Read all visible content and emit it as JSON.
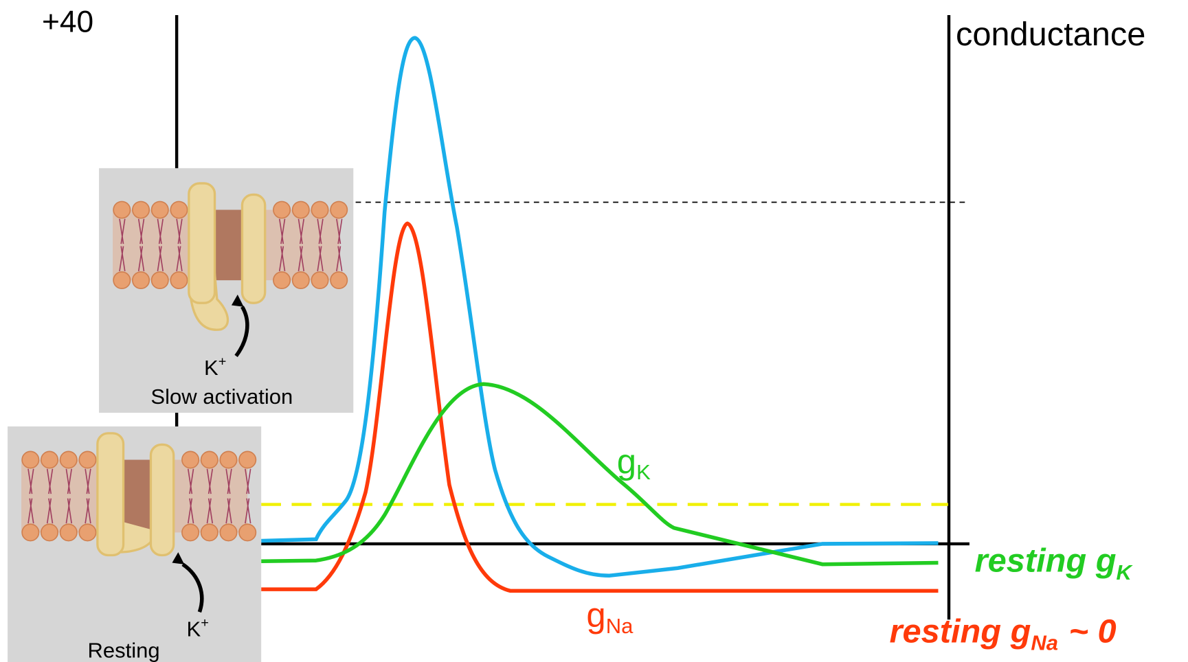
{
  "axis": {
    "top_label": "+40",
    "right_label": "conductance"
  },
  "curve_labels": {
    "g_k": {
      "symbol": "g",
      "subscript": "K"
    },
    "g_na": {
      "symbol": "g",
      "subscript": "Na"
    }
  },
  "resting_labels": {
    "k": {
      "text": "resting g",
      "subscript": "K"
    },
    "na": {
      "text": "resting g",
      "subscript": "Na",
      "suffix": "~ 0"
    }
  },
  "channels": [
    {
      "ion": "K",
      "charge": "+",
      "caption": "Slow activation"
    },
    {
      "ion": "K",
      "charge": "+",
      "caption": "Resting"
    }
  ]
}
